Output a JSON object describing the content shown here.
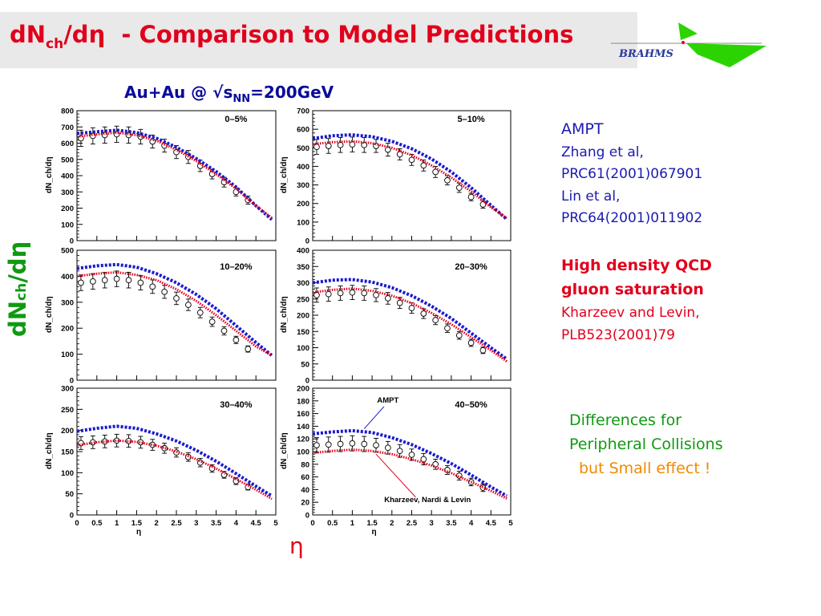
{
  "title": {
    "main": "dN",
    "main_sub": "ch",
    "main_rest": "/dη",
    "rest": "- Comparison to Model Predictions",
    "logo": "BRAHMS"
  },
  "heading": {
    "prefix": "Au+Au @ √s",
    "sub": "NN",
    "suffix": "=200GeV"
  },
  "ylabel_big": {
    "main": "dN",
    "sub": "ch",
    "rest": "/dη"
  },
  "xlabel_big": "η",
  "annotations": {
    "ampt_title": "AMPT",
    "ampt_lines": [
      "Zhang et al,",
      "PRC61(2001)067901",
      "Lin et al,",
      "PRC64(2001)011902"
    ],
    "kl_title": [
      "High density QCD",
      "gluon saturation"
    ],
    "kl_lines": [
      "Kharzeev and Levin,",
      "PLB523(2001)79"
    ],
    "diff_lines": [
      "Differences for",
      "Peripheral Collisions"
    ],
    "small_effect": "but Small effect !"
  },
  "colors": {
    "title_red": "#e0001b",
    "ampt_blue": "#1a1ab0",
    "kl_red": "#e0001b",
    "green": "#0f9a12",
    "orange": "#f08a00"
  },
  "panel_axis": {
    "ylabel": "dN_ch/dη",
    "xlabel": "η"
  },
  "chart_data": [
    {
      "type": "scatter",
      "label": "0–5%",
      "xlim": [
        0,
        5
      ],
      "ylim": [
        0,
        800
      ],
      "yticks": [
        0,
        100,
        200,
        300,
        400,
        500,
        600,
        700,
        800
      ],
      "xticks": [
        0,
        0.5,
        1,
        1.5,
        2,
        2.5,
        3,
        3.5,
        4,
        4.5,
        5
      ],
      "show_xticklabels": false,
      "series": [
        {
          "role": "data",
          "x": [
            0.1,
            0.4,
            0.7,
            1.0,
            1.3,
            1.6,
            1.9,
            2.2,
            2.5,
            2.8,
            3.1,
            3.4,
            3.7,
            4.0,
            4.3
          ],
          "y": [
            630,
            645,
            650,
            655,
            650,
            640,
            610,
            585,
            545,
            515,
            460,
            410,
            360,
            300,
            250
          ],
          "err": [
            50,
            50,
            50,
            50,
            50,
            45,
            40,
            40,
            40,
            40,
            35,
            30,
            30,
            25,
            25
          ]
        },
        {
          "role": "AMPT",
          "x": [
            0,
            0.5,
            1,
            1.5,
            2,
            2.5,
            3,
            3.5,
            4,
            4.5,
            4.9
          ],
          "y": [
            660,
            670,
            680,
            665,
            630,
            575,
            505,
            425,
            330,
            215,
            130
          ]
        },
        {
          "role": "KL",
          "x": [
            0,
            0.5,
            1,
            1.5,
            2,
            2.5,
            3,
            3.5,
            4,
            4.5,
            4.9
          ],
          "y": [
            640,
            655,
            665,
            650,
            615,
            560,
            490,
            410,
            320,
            215,
            140
          ]
        }
      ]
    },
    {
      "type": "scatter",
      "label": "5–10%",
      "xlim": [
        0,
        5
      ],
      "ylim": [
        0,
        700
      ],
      "yticks": [
        0,
        100,
        200,
        300,
        400,
        500,
        600,
        700
      ],
      "xticks": [
        0,
        0.5,
        1,
        1.5,
        2,
        2.5,
        3,
        3.5,
        4,
        4.5,
        5
      ],
      "show_xticklabels": false,
      "series": [
        {
          "role": "data",
          "x": [
            0.1,
            0.4,
            0.7,
            1.0,
            1.3,
            1.6,
            1.9,
            2.2,
            2.5,
            2.8,
            3.1,
            3.4,
            3.7,
            4.0,
            4.3
          ],
          "y": [
            505,
            510,
            515,
            518,
            515,
            510,
            490,
            465,
            435,
            405,
            370,
            325,
            285,
            235,
            195
          ],
          "err": [
            40,
            40,
            40,
            40,
            40,
            35,
            35,
            30,
            30,
            30,
            30,
            25,
            25,
            20,
            20
          ]
        },
        {
          "role": "AMPT",
          "x": [
            0,
            0.5,
            1,
            1.5,
            2,
            2.5,
            3,
            3.5,
            4,
            4.5,
            4.9
          ],
          "y": [
            550,
            565,
            570,
            560,
            535,
            495,
            440,
            370,
            285,
            190,
            115
          ]
        },
        {
          "role": "KL",
          "x": [
            0,
            0.5,
            1,
            1.5,
            2,
            2.5,
            3,
            3.5,
            4,
            4.5,
            4.9
          ],
          "y": [
            520,
            530,
            535,
            525,
            500,
            460,
            405,
            340,
            265,
            180,
            120
          ]
        }
      ]
    },
    {
      "type": "scatter",
      "label": "10–20%",
      "xlim": [
        0,
        5
      ],
      "ylim": [
        0,
        500
      ],
      "yticks": [
        0,
        100,
        200,
        300,
        400,
        500
      ],
      "xticks": [
        0,
        0.5,
        1,
        1.5,
        2,
        2.5,
        3,
        3.5,
        4,
        4.5,
        5
      ],
      "show_xticklabels": false,
      "series": [
        {
          "role": "data",
          "x": [
            0.1,
            0.4,
            0.7,
            1.0,
            1.3,
            1.6,
            1.9,
            2.2,
            2.5,
            2.8,
            3.1,
            3.4,
            3.7,
            4.0,
            4.3
          ],
          "y": [
            375,
            380,
            385,
            390,
            385,
            375,
            360,
            340,
            315,
            290,
            260,
            225,
            190,
            155,
            120
          ],
          "err": [
            30,
            30,
            30,
            30,
            30,
            28,
            26,
            25,
            24,
            22,
            20,
            18,
            16,
            14,
            12
          ]
        },
        {
          "role": "AMPT",
          "x": [
            0,
            0.5,
            1,
            1.5,
            2,
            2.5,
            3,
            3.5,
            4,
            4.5,
            4.9
          ],
          "y": [
            430,
            440,
            445,
            435,
            410,
            375,
            330,
            275,
            210,
            145,
            95
          ]
        },
        {
          "role": "KL",
          "x": [
            0,
            0.5,
            1,
            1.5,
            2,
            2.5,
            3,
            3.5,
            4,
            4.5,
            4.9
          ],
          "y": [
            400,
            410,
            415,
            405,
            385,
            350,
            305,
            250,
            190,
            130,
            95
          ]
        }
      ]
    },
    {
      "type": "scatter",
      "label": "20–30%",
      "xlim": [
        0,
        5
      ],
      "ylim": [
        0,
        400
      ],
      "yticks": [
        0,
        50,
        100,
        150,
        200,
        250,
        300,
        350,
        400
      ],
      "xticks": [
        0,
        0.5,
        1,
        1.5,
        2,
        2.5,
        3,
        3.5,
        4,
        4.5,
        5
      ],
      "show_xticklabels": false,
      "series": [
        {
          "role": "data",
          "x": [
            0.1,
            0.4,
            0.7,
            1.0,
            1.3,
            1.6,
            1.9,
            2.2,
            2.5,
            2.8,
            3.1,
            3.4,
            3.7,
            4.0,
            4.3
          ],
          "y": [
            262,
            265,
            268,
            270,
            268,
            262,
            252,
            238,
            222,
            205,
            185,
            160,
            138,
            115,
            92
          ],
          "err": [
            22,
            22,
            22,
            22,
            22,
            20,
            18,
            17,
            16,
            15,
            14,
            13,
            12,
            11,
            10
          ]
        },
        {
          "role": "AMPT",
          "x": [
            0,
            0.5,
            1,
            1.5,
            2,
            2.5,
            3,
            3.5,
            4,
            4.5,
            4.9
          ],
          "y": [
            300,
            308,
            310,
            302,
            285,
            260,
            228,
            190,
            145,
            100,
            65
          ]
        },
        {
          "role": "KL",
          "x": [
            0,
            0.5,
            1,
            1.5,
            2,
            2.5,
            3,
            3.5,
            4,
            4.5,
            4.9
          ],
          "y": [
            270,
            278,
            282,
            275,
            260,
            237,
            207,
            172,
            132,
            92,
            58
          ]
        }
      ]
    },
    {
      "type": "scatter",
      "label": "30–40%",
      "xlim": [
        0,
        5
      ],
      "ylim": [
        0,
        300
      ],
      "yticks": [
        0,
        50,
        100,
        150,
        200,
        250,
        300
      ],
      "xticks": [
        0,
        0.5,
        1,
        1.5,
        2,
        2.5,
        3,
        3.5,
        4,
        4.5,
        5
      ],
      "show_xticklabels": true,
      "series": [
        {
          "role": "data",
          "x": [
            0.1,
            0.4,
            0.7,
            1.0,
            1.3,
            1.6,
            1.9,
            2.2,
            2.5,
            2.8,
            3.1,
            3.4,
            3.7,
            4.0,
            4.3
          ],
          "y": [
            170,
            172,
            174,
            176,
            175,
            172,
            166,
            158,
            148,
            137,
            124,
            110,
            95,
            80,
            66
          ],
          "err": [
            15,
            15,
            15,
            15,
            15,
            14,
            13,
            12,
            11,
            10,
            10,
            9,
            8,
            8,
            7
          ]
        },
        {
          "role": "AMPT",
          "x": [
            0,
            0.5,
            1,
            1.5,
            2,
            2.5,
            3,
            3.5,
            4,
            4.5,
            4.9
          ],
          "y": [
            198,
            205,
            210,
            205,
            192,
            175,
            153,
            127,
            98,
            68,
            45
          ]
        },
        {
          "role": "KL",
          "x": [
            0,
            0.5,
            1,
            1.5,
            2,
            2.5,
            3,
            3.5,
            4,
            4.5,
            4.9
          ],
          "y": [
            165,
            172,
            176,
            173,
            164,
            150,
            132,
            110,
            85,
            60,
            38
          ]
        }
      ]
    },
    {
      "type": "scatter",
      "label": "40–50%",
      "xlim": [
        0,
        5
      ],
      "ylim": [
        0,
        200
      ],
      "yticks": [
        0,
        20,
        40,
        60,
        80,
        100,
        120,
        140,
        160,
        180,
        200
      ],
      "xticks": [
        0,
        0.5,
        1,
        1.5,
        2,
        2.5,
        3,
        3.5,
        4,
        4.5,
        5
      ],
      "show_xticklabels": true,
      "annotation_ampt": "AMPT",
      "annotation_kl": "Kharzeev, Nardi & Levin",
      "series": [
        {
          "role": "data",
          "x": [
            0.1,
            0.4,
            0.7,
            1.0,
            1.3,
            1.6,
            1.9,
            2.2,
            2.5,
            2.8,
            3.1,
            3.4,
            3.7,
            4.0,
            4.3
          ],
          "y": [
            110,
            111,
            112,
            113,
            112,
            110,
            106,
            101,
            95,
            88,
            80,
            71,
            62,
            52,
            43
          ],
          "err": [
            12,
            12,
            12,
            12,
            12,
            11,
            10,
            10,
            9,
            9,
            8,
            7,
            7,
            6,
            6
          ]
        },
        {
          "role": "AMPT",
          "x": [
            0,
            0.5,
            1,
            1.5,
            2,
            2.5,
            3,
            3.5,
            4,
            4.5,
            4.9
          ],
          "y": [
            128,
            131,
            133,
            130,
            122,
            111,
            97,
            81,
            63,
            44,
            30
          ]
        },
        {
          "role": "KL",
          "x": [
            0,
            0.5,
            1,
            1.5,
            2,
            2.5,
            3,
            3.5,
            4,
            4.5,
            4.9
          ],
          "y": [
            98,
            101,
            103,
            101,
            96,
            88,
            78,
            66,
            52,
            38,
            26
          ]
        }
      ]
    }
  ]
}
